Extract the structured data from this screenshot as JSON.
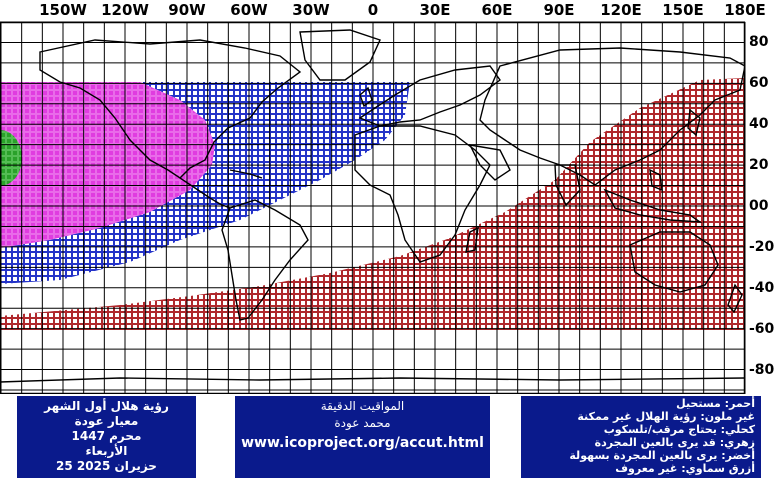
{
  "map": {
    "longitude_labels": [
      "150W",
      "120W",
      "90W",
      "60W",
      "30W",
      "0",
      "30E",
      "60E",
      "90E",
      "120E",
      "150E",
      "180E"
    ],
    "latitude_labels": [
      "80",
      "60",
      "40",
      "20",
      "00",
      "-20",
      "-40",
      "-60",
      "-80"
    ],
    "zone_colors": {
      "red": "#b0282c",
      "blue": "#2433c8",
      "magenta": "#e03ce0",
      "green": "#2aa12a",
      "grid": "#000000"
    }
  },
  "info_left": {
    "lines": [
      "رؤية هلال أول الشهر",
      "معيار عودة",
      "محرم 1447",
      "الأربعاء",
      "25 حزيران 2025"
    ]
  },
  "info_middle": {
    "title": "المواقيت الدقيقة",
    "author": "محمد عودة",
    "url": "www.icoproject.org/accut.html"
  },
  "legend": {
    "lines": [
      "أحمر: مستحيل",
      "غير ملون: رؤية الهلال غير ممكنة",
      "كحلي: يحتاج مرقب/تلسكوب",
      "زهري: قد يرى بالعين المجردة",
      "أخضر: يرى بالعين المجردة بسهولة",
      "أزرق سماوي: غير معروف"
    ]
  }
}
